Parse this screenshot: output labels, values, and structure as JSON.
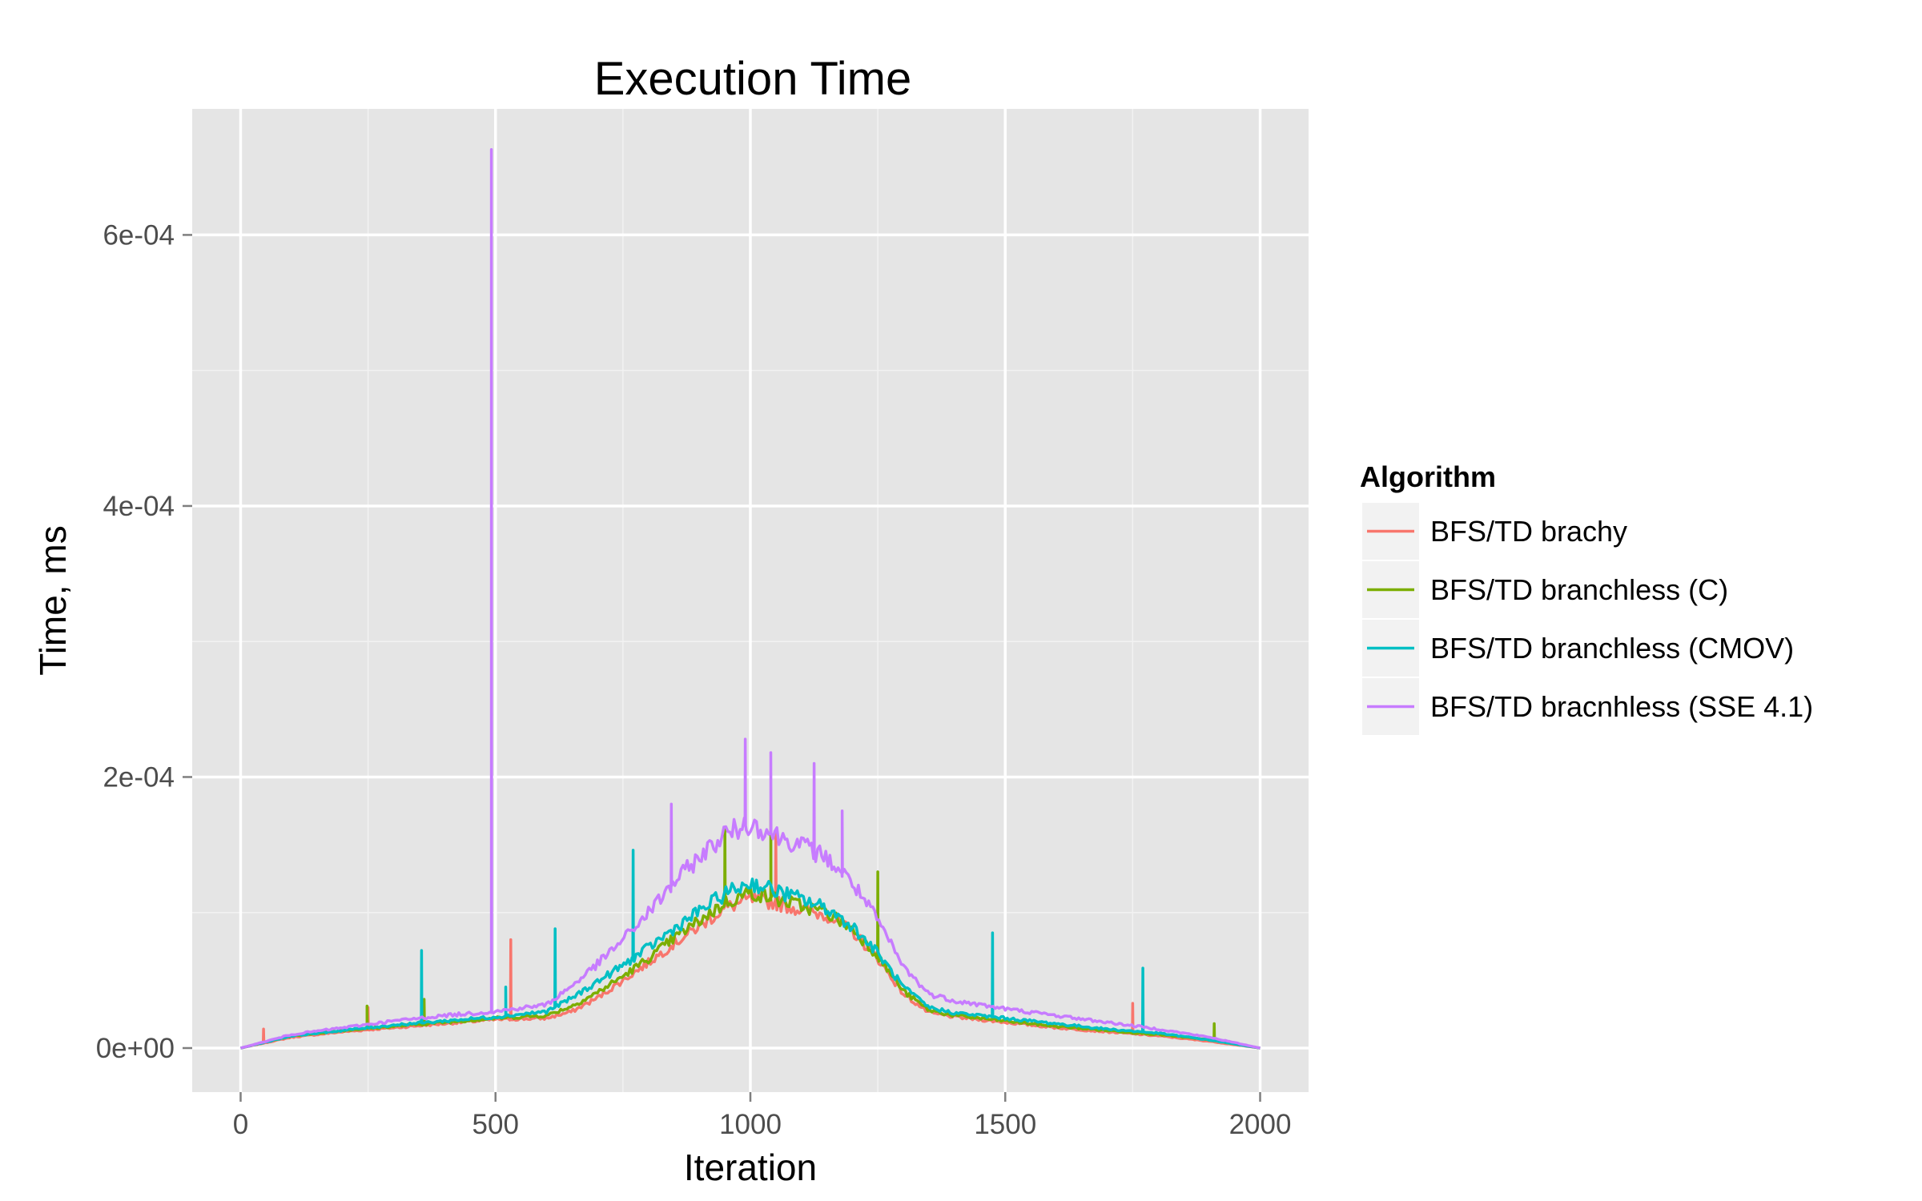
{
  "chart_data": {
    "type": "line",
    "title": "Execution Time",
    "xlabel": "Iteration",
    "ylabel": "Time, ms",
    "xlim": [
      -95,
      2095
    ],
    "ylim": [
      -3.25e-05,
      0.000693
    ],
    "x_ticks": [
      {
        "value": 0,
        "label": "0"
      },
      {
        "value": 500,
        "label": "500"
      },
      {
        "value": 1000,
        "label": "1000"
      },
      {
        "value": 1500,
        "label": "1500"
      },
      {
        "value": 2000,
        "label": "2000"
      }
    ],
    "y_ticks": [
      {
        "value": 0,
        "label": "0e+00"
      },
      {
        "value": 0.0002,
        "label": "2e-04"
      },
      {
        "value": 0.0004,
        "label": "4e-04"
      },
      {
        "value": 0.0006,
        "label": "6e-04"
      }
    ],
    "grid": true,
    "legend": {
      "title": "Algorithm",
      "position": "right"
    },
    "panel_color": "#e5e5e5",
    "series": [
      {
        "name": "BFS/TD brachy",
        "color": "#F8766D",
        "x": [
          0,
          100,
          200,
          300,
          400,
          500,
          600,
          650,
          700,
          750,
          800,
          850,
          900,
          950,
          1000,
          1050,
          1100,
          1150,
          1200,
          1250,
          1300,
          1350,
          1400,
          1500,
          1600,
          1700,
          1800,
          1900,
          2000
        ],
        "y": [
          0,
          8e-06,
          1.2e-05,
          1.5e-05,
          1.8e-05,
          2.1e-05,
          2.2e-05,
          2.7e-05,
          3.7e-05,
          5e-05,
          6.3e-05,
          7.7e-05,
          9e-05,
          0.000103,
          0.00011,
          0.000107,
          0.000102,
          9.8e-05,
          8.6e-05,
          6.6e-05,
          4e-05,
          2.6e-05,
          2.3e-05,
          1.9e-05,
          1.5e-05,
          1.2e-05,
          9e-06,
          5e-06,
          0
        ],
        "spikes": [
          [
            45,
            1.4e-05
          ],
          [
            250,
            3e-05
          ],
          [
            530,
            8e-05
          ],
          [
            1050,
            0.00016
          ],
          [
            1750,
            3.3e-05
          ]
        ]
      },
      {
        "name": "BFS/TD branchless (C)",
        "color": "#7CAE00",
        "x": [
          0,
          100,
          200,
          300,
          400,
          500,
          600,
          650,
          700,
          750,
          800,
          850,
          900,
          950,
          1000,
          1050,
          1100,
          1150,
          1200,
          1250,
          1300,
          1350,
          1400,
          1500,
          1600,
          1700,
          1800,
          1900,
          2000
        ],
        "y": [
          0,
          9e-06,
          1.3e-05,
          1.6e-05,
          1.9e-05,
          2.2e-05,
          2.4e-05,
          3.1e-05,
          4.1e-05,
          5.3e-05,
          6.6e-05,
          8.1e-05,
          9.4e-05,
          0.000107,
          0.000115,
          0.00011,
          0.000105,
          0.0001,
          8.8e-05,
          6.8e-05,
          4.2e-05,
          2.8e-05,
          2.4e-05,
          2e-05,
          1.6e-05,
          1.3e-05,
          1e-05,
          6e-06,
          0
        ],
        "spikes": [
          [
            248,
            3.1e-05
          ],
          [
            360,
            3.6e-05
          ],
          [
            950,
            0.000162
          ],
          [
            1040,
            0.000175
          ],
          [
            1250,
            0.00013
          ],
          [
            1910,
            1.8e-05
          ]
        ]
      },
      {
        "name": "BFS/TD branchless (CMOV)",
        "color": "#00BFC4",
        "x": [
          0,
          100,
          200,
          300,
          400,
          500,
          600,
          650,
          700,
          750,
          800,
          850,
          900,
          950,
          1000,
          1050,
          1100,
          1150,
          1200,
          1250,
          1300,
          1350,
          1400,
          1500,
          1600,
          1700,
          1800,
          1900,
          2000
        ],
        "y": [
          0,
          9e-06,
          1.3e-05,
          1.7e-05,
          2e-05,
          2.3e-05,
          2.7e-05,
          3.7e-05,
          4.9e-05,
          6.1e-05,
          7.4e-05,
          8.8e-05,
          0.000101,
          0.000114,
          0.000122,
          0.000116,
          0.00011,
          0.000103,
          9e-05,
          7e-05,
          4.5e-05,
          3e-05,
          2.6e-05,
          2.2e-05,
          1.8e-05,
          1.4e-05,
          1.1e-05,
          6e-06,
          0
        ],
        "spikes": [
          [
            355,
            7.2e-05
          ],
          [
            520,
            4.5e-05
          ],
          [
            617,
            8.8e-05
          ],
          [
            770,
            0.000146
          ],
          [
            1475,
            8.5e-05
          ],
          [
            1770,
            5.9e-05
          ]
        ]
      },
      {
        "name": "BFS/TD bracnhless (SSE 4.1)",
        "color": "#C77CFF",
        "x": [
          0,
          100,
          200,
          300,
          400,
          500,
          600,
          650,
          700,
          750,
          800,
          850,
          900,
          950,
          1000,
          1050,
          1100,
          1150,
          1200,
          1250,
          1300,
          1350,
          1400,
          1500,
          1600,
          1700,
          1800,
          1900,
          2000
        ],
        "y": [
          0,
          1e-05,
          1.5e-05,
          2e-05,
          2.4e-05,
          2.7e-05,
          3.2e-05,
          4.6e-05,
          6.2e-05,
          8e-05,
          0.0001,
          0.000122,
          0.000141,
          0.000158,
          0.000166,
          0.000157,
          0.00015,
          0.00014,
          0.000122,
          9.4e-05,
          6e-05,
          4e-05,
          3.5e-05,
          2.9e-05,
          2.4e-05,
          1.9e-05,
          1.4e-05,
          8e-06,
          0
        ],
        "spikes": [
          [
            492,
            0.000663
          ],
          [
            845,
            0.00018
          ],
          [
            990,
            0.000228
          ],
          [
            1040,
            0.000218
          ],
          [
            1125,
            0.00021
          ],
          [
            1180,
            0.000175
          ]
        ]
      }
    ]
  }
}
